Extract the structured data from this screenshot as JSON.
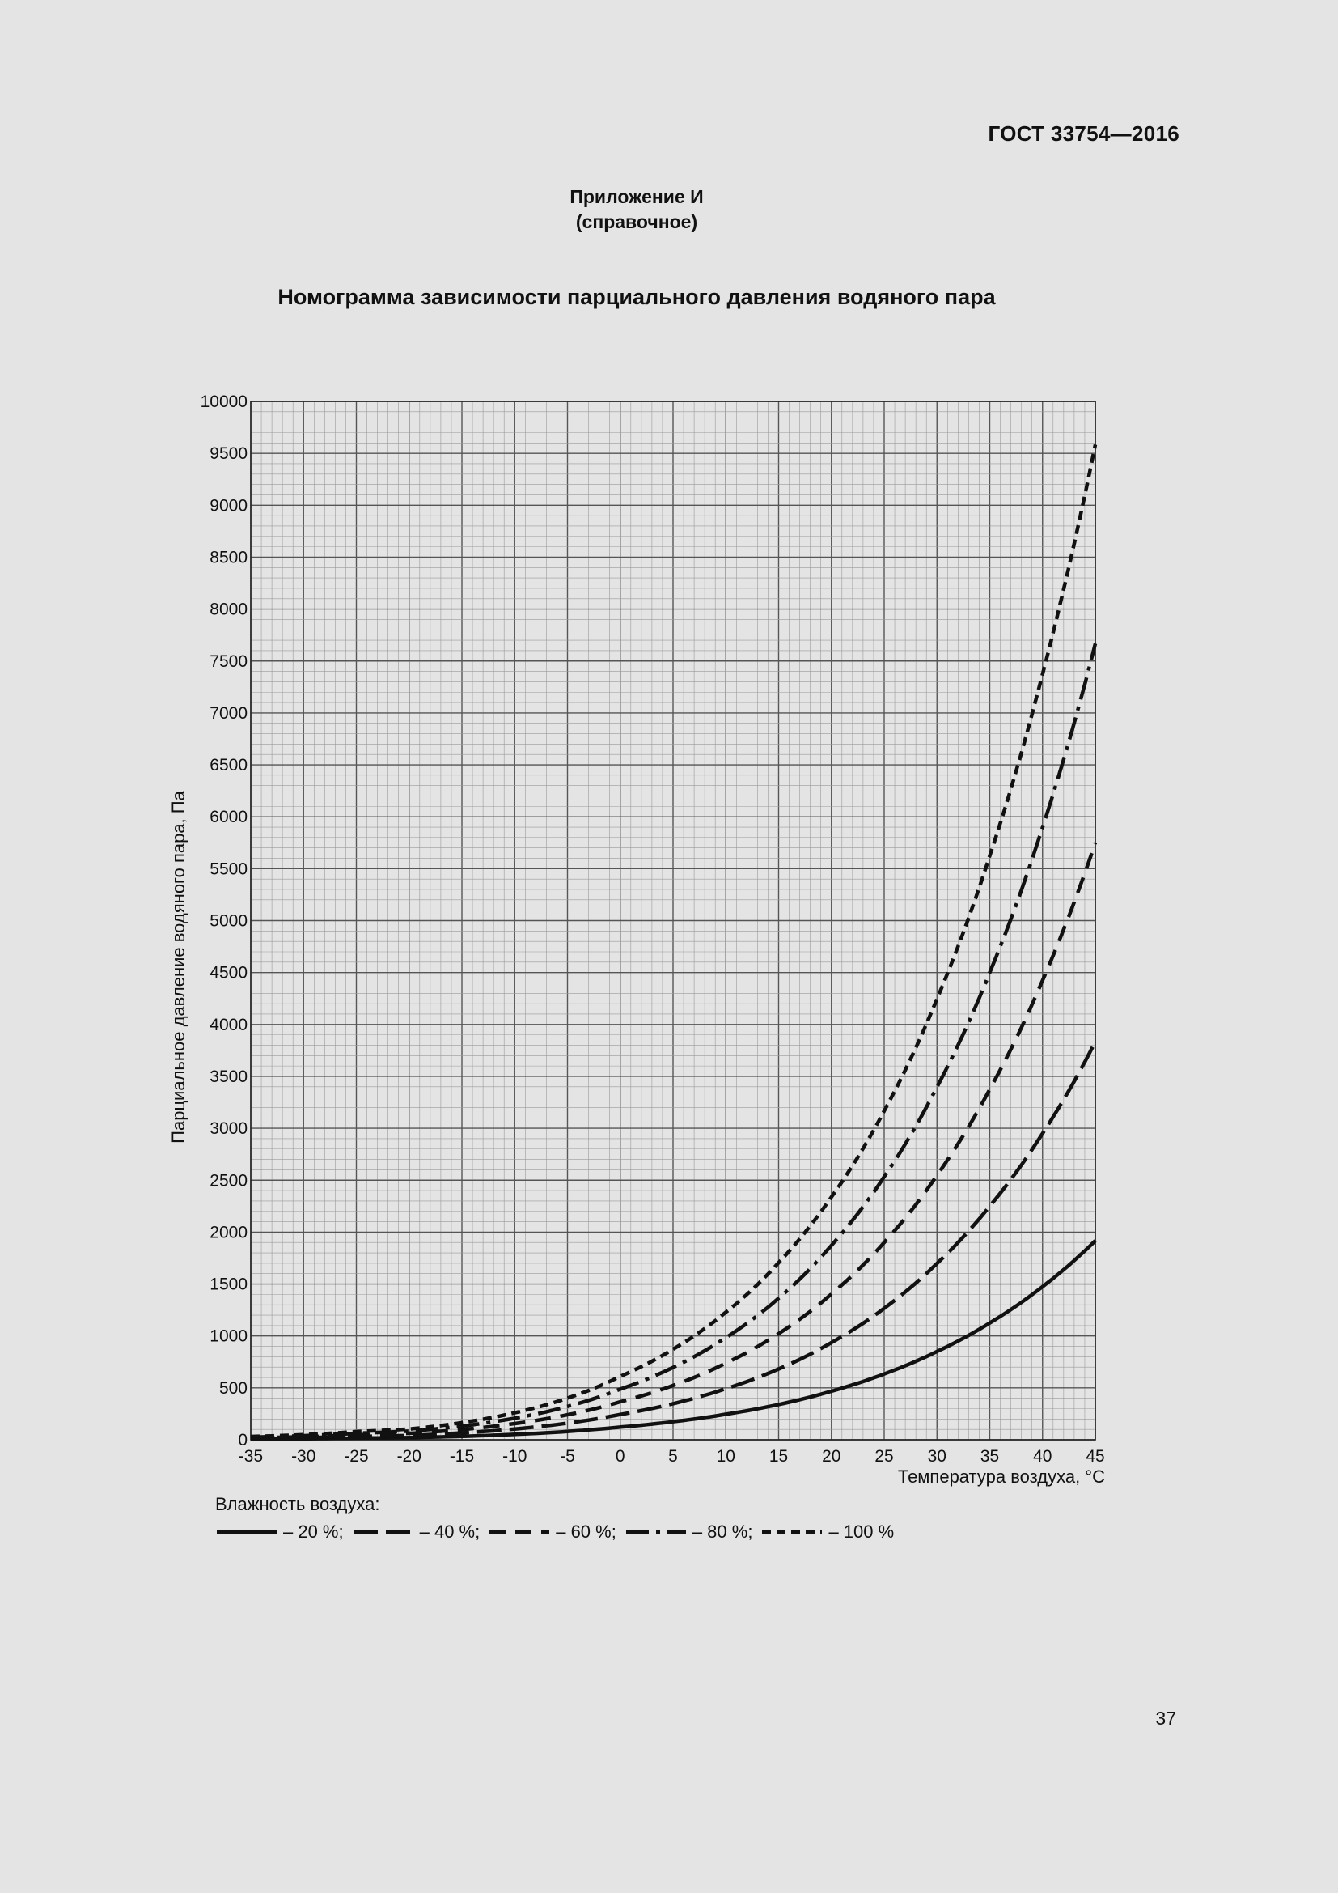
{
  "header": {
    "doc_code": "ГОСТ 33754—2016",
    "appendix_label": "Приложение И",
    "appendix_type": "(справочное)",
    "title": "Номограмма зависимости парциального давления водяного пара"
  },
  "chart_data": {
    "type": "line",
    "title": "",
    "xlabel": "Температура воздуха, °С",
    "ylabel": "Парциальное давление водяного пара, Па",
    "xlim": [
      -35,
      45
    ],
    "ylim": [
      0,
      10000
    ],
    "x_ticks": [
      "-35",
      "-30",
      "-25",
      "-20",
      "-15",
      "-10",
      "-5",
      "0",
      "5",
      "10",
      "15",
      "20",
      "25",
      "30",
      "35",
      "40",
      "45"
    ],
    "y_ticks": [
      "0",
      "500",
      "1000",
      "1500",
      "2000",
      "2500",
      "3000",
      "3500",
      "4000",
      "4500",
      "5000",
      "5500",
      "6000",
      "6500",
      "7000",
      "7500",
      "8000",
      "8500",
      "9000",
      "9500",
      "10000"
    ],
    "grid": true,
    "legend_title": "Влажность воздуха:",
    "x": [
      -35,
      -30,
      -25,
      -20,
      -15,
      -10,
      -5,
      0,
      5,
      10,
      15,
      20,
      25,
      30,
      35,
      40,
      45
    ],
    "series": [
      {
        "name": "– 20 %;",
        "style": "solid",
        "values": [
          6,
          10,
          16,
          21,
          33,
          52,
          80,
          122,
          174,
          246,
          340,
          468,
          634,
          850,
          1125,
          1475,
          1917
        ]
      },
      {
        "name": "– 40 %;",
        "style": "long-dash",
        "values": [
          13,
          20,
          32,
          41,
          66,
          104,
          160,
          244,
          348,
          492,
          682,
          936,
          1266,
          1698,
          2250,
          2950,
          3834
        ]
      },
      {
        "name": "– 60 %;",
        "style": "dash",
        "values": [
          19,
          29,
          47,
          62,
          99,
          156,
          241,
          366,
          523,
          738,
          1022,
          1404,
          1900,
          2547,
          3375,
          4424,
          5750
        ]
      },
      {
        "name": "– 80 %;",
        "style": "dash-dot",
        "values": [
          25,
          39,
          63,
          83,
          132,
          208,
          321,
          488,
          697,
          984,
          1363,
          1872,
          2533,
          3397,
          4500,
          5899,
          7667
        ]
      },
      {
        "name": "– 100 %",
        "style": "short-dash",
        "values": [
          31,
          49,
          79,
          103,
          165,
          260,
          401,
          611,
          872,
          1228,
          1705,
          2338,
          3167,
          4246,
          5624,
          7374,
          9584
        ]
      }
    ],
    "colors": {
      "line": "#111111",
      "grid_major": "#555555",
      "grid_minor": "#9a9a9a",
      "background": "#e4e4e4"
    }
  },
  "footer": {
    "page_number": "37"
  }
}
